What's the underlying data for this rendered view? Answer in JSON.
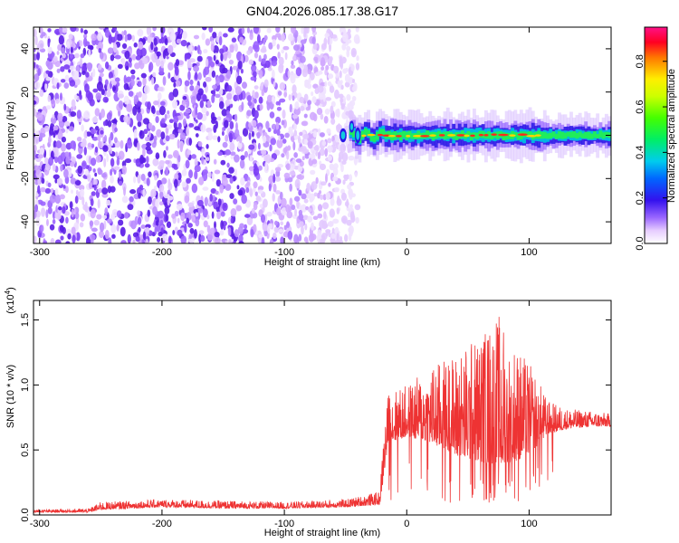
{
  "title": "GN04.2026.085.17.38.G17",
  "chart_data": [
    {
      "type": "heatmap",
      "name": "spectrogram",
      "xlabel": "Height of straight line (km)",
      "ylabel": "Frequency (Hz)",
      "xlim": [
        -305,
        167
      ],
      "ylim": [
        -50,
        50
      ],
      "xticks": [
        -300,
        -200,
        -100,
        0,
        100
      ],
      "yticks": [
        -40,
        -20,
        0,
        20,
        40
      ],
      "xtick_labels": [
        "-300",
        "-200",
        "-100",
        "0",
        "100"
      ],
      "ytick_labels": [
        "-40",
        "-20",
        "0",
        "20",
        "40"
      ],
      "noise_region_x": [
        -305,
        -40
      ],
      "signal_x": [
        -65,
        167
      ],
      "signal_center_hz": 0,
      "colorbar": {
        "label": "Normalized spectral amplitude",
        "range": [
          0.0,
          0.95
        ],
        "ticks": [
          0.0,
          0.2,
          0.4,
          0.6,
          0.8
        ],
        "tick_labels": [
          "0.0",
          "0.2",
          "0.4",
          "0.6",
          "0.8"
        ]
      }
    },
    {
      "type": "line",
      "name": "snr",
      "xlabel": "Height of straight line (km)",
      "ylabel": "SNR (10 * v/v)",
      "multiplier_label": "(x10",
      "multiplier_exp": "4",
      "multiplier_close": ")",
      "xlim": [
        -305,
        167
      ],
      "ylim": [
        0.0,
        1.65
      ],
      "xticks": [
        -300,
        -200,
        -100,
        0,
        100
      ],
      "yticks": [
        0.0,
        0.5,
        1.0,
        1.5
      ],
      "xtick_labels": [
        "-300",
        "-200",
        "-100",
        "0",
        "100"
      ],
      "ytick_labels": [
        "0.0",
        "0.5",
        "1.0",
        "1.5"
      ],
      "color": "#ee3333",
      "envelope": {
        "x": [
          -305,
          -260,
          -250,
          -200,
          -150,
          -100,
          -50,
          -22,
          -18,
          -15,
          0,
          20,
          40,
          60,
          75,
          90,
          105,
          115,
          130,
          150,
          167
        ],
        "base": [
          0.02,
          0.02,
          0.04,
          0.06,
          0.05,
          0.05,
          0.06,
          0.08,
          0.35,
          0.55,
          0.6,
          0.55,
          0.45,
          0.4,
          0.35,
          0.4,
          0.5,
          0.62,
          0.66,
          0.68,
          0.68
        ],
        "peak": [
          0.04,
          0.05,
          0.1,
          0.12,
          0.11,
          0.1,
          0.12,
          0.18,
          0.75,
          0.95,
          1.0,
          1.15,
          1.25,
          1.4,
          1.55,
          1.3,
          1.1,
          0.88,
          0.82,
          0.8,
          0.78
        ]
      }
    }
  ]
}
